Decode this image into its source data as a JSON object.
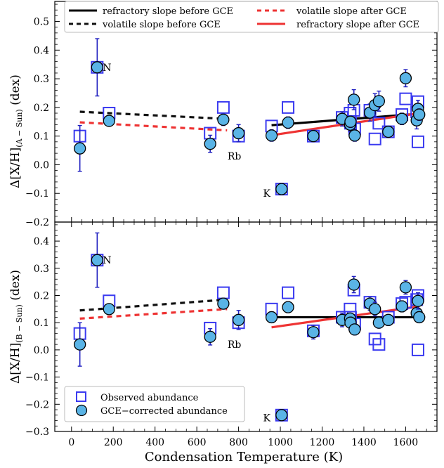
{
  "chart_data": {
    "type": "scatter",
    "xlabel": "Condensation Temperature (K)",
    "xlim": [
      -80,
      1750
    ],
    "x_ticks": [
      "0",
      "200",
      "400",
      "600",
      "800",
      "1000",
      "1200",
      "1400",
      "1600"
    ],
    "colors": {
      "observed": "#3a3af0",
      "corrected_fill": "#5ab4e6",
      "errorbar": "#4a4a4a",
      "errorbar_obs": "#2020c0",
      "refractory_before": "#000000",
      "volatile_before": "#111111",
      "volatile_after": "#ee3333",
      "refractory_after": "#ee3333"
    },
    "legend_top": {
      "placement": "top",
      "entries": [
        {
          "key": "refractory_before",
          "label": "refractory slope before GCE"
        },
        {
          "key": "volatile_after",
          "label": "volatile slope after GCE"
        },
        {
          "key": "volatile_before",
          "label": "volatile slope before GCE"
        },
        {
          "key": "refractory_after",
          "label": "refractory slope after GCE"
        }
      ]
    },
    "legend_bottom": {
      "placement": "lower-left",
      "entries": [
        {
          "key": "observed",
          "label": "Observed abundance"
        },
        {
          "key": "corrected",
          "label": "GCE−corrected abundance"
        }
      ]
    },
    "panels": [
      {
        "ylabel_pre": "Δ[X/H]",
        "ylabel_sub": "(A − Sun)",
        "ylabel_post": " (dex)",
        "ylim": [
          -0.2,
          0.57
        ],
        "y_ticks": [
          "−0.2",
          "−0.1",
          "0.0",
          "0.1",
          "0.2",
          "0.3",
          "0.4",
          "0.5"
        ],
        "y_tick_values": [
          -0.2,
          -0.1,
          0.0,
          0.1,
          0.2,
          0.3,
          0.4,
          0.5
        ],
        "annotations": [
          {
            "text": "N",
            "x": 170,
            "y": 0.34
          },
          {
            "text": "Rb",
            "x": 780,
            "y": 0.03
          },
          {
            "text": "K",
            "x": 935,
            "y": -0.1
          }
        ],
        "observed": [
          {
            "x": 40,
            "y": 0.1
          },
          {
            "x": 123,
            "y": 0.34
          },
          {
            "x": 180,
            "y": 0.18
          },
          {
            "x": 664,
            "y": 0.11
          },
          {
            "x": 727,
            "y": 0.2
          },
          {
            "x": 800,
            "y": 0.1
          },
          {
            "x": 958,
            "y": 0.135
          },
          {
            "x": 1006,
            "y": -0.085
          },
          {
            "x": 1037,
            "y": 0.2
          },
          {
            "x": 1158,
            "y": 0.1
          },
          {
            "x": 1296,
            "y": 0.165
          },
          {
            "x": 1334,
            "y": 0.18
          },
          {
            "x": 1336,
            "y": 0.145
          },
          {
            "x": 1352,
            "y": 0.19
          },
          {
            "x": 1356,
            "y": 0.125
          },
          {
            "x": 1429,
            "y": 0.19
          },
          {
            "x": 1453,
            "y": 0.09
          },
          {
            "x": 1472,
            "y": 0.145
          },
          {
            "x": 1517,
            "y": 0.115
          },
          {
            "x": 1582,
            "y": 0.175
          },
          {
            "x": 1600,
            "y": 0.23
          },
          {
            "x": 1653,
            "y": 0.185
          },
          {
            "x": 1659,
            "y": 0.22
          },
          {
            "x": 1659,
            "y": 0.08
          }
        ],
        "corrected": [
          {
            "x": 40,
            "y": 0.057,
            "err": 0.08
          },
          {
            "x": 123,
            "y": 0.34,
            "err": 0.1
          },
          {
            "x": 180,
            "y": 0.153,
            "err": 0.015
          },
          {
            "x": 664,
            "y": 0.073,
            "err": 0.03
          },
          {
            "x": 727,
            "y": 0.157,
            "err": 0.02
          },
          {
            "x": 800,
            "y": 0.11,
            "err": 0.03
          },
          {
            "x": 958,
            "y": 0.102,
            "err": 0.02
          },
          {
            "x": 1006,
            "y": -0.085,
            "err": 0.02
          },
          {
            "x": 1037,
            "y": 0.147,
            "err": 0.02
          },
          {
            "x": 1158,
            "y": 0.1,
            "err": 0.02
          },
          {
            "x": 1296,
            "y": 0.16,
            "err": 0.025
          },
          {
            "x": 1334,
            "y": 0.14,
            "err": 0.025
          },
          {
            "x": 1336,
            "y": 0.15,
            "err": 0.02
          },
          {
            "x": 1352,
            "y": 0.227,
            "err": 0.035
          },
          {
            "x": 1356,
            "y": 0.102,
            "err": 0.02
          },
          {
            "x": 1429,
            "y": 0.182,
            "err": 0.03
          },
          {
            "x": 1453,
            "y": 0.208,
            "err": 0.04
          },
          {
            "x": 1472,
            "y": 0.222,
            "err": 0.035
          },
          {
            "x": 1517,
            "y": 0.115,
            "err": 0.02
          },
          {
            "x": 1582,
            "y": 0.16,
            "err": 0.02
          },
          {
            "x": 1600,
            "y": 0.302,
            "err": 0.03
          },
          {
            "x": 1653,
            "y": 0.155,
            "err": 0.03
          },
          {
            "x": 1659,
            "y": 0.195,
            "err": 0.03
          },
          {
            "x": 1665,
            "y": 0.175,
            "err": 0.02
          }
        ],
        "lines": {
          "volatile_before": [
            [
              40,
              0.185
            ],
            [
              745,
              0.16
            ]
          ],
          "volatile_after": [
            [
              40,
              0.148
            ],
            [
              745,
              0.12
            ]
          ],
          "refractory_before": [
            [
              958,
              0.138
            ],
            [
              1665,
              0.178
            ]
          ],
          "refractory_after": [
            [
              958,
              0.103
            ],
            [
              1665,
              0.18
            ]
          ]
        }
      },
      {
        "ylabel_pre": "Δ[X/H]",
        "ylabel_sub": "(B − Sun)",
        "ylabel_post": " (dex)",
        "ylim": [
          -0.3,
          0.47
        ],
        "y_ticks": [
          "−0.3",
          "−0.2",
          "−0.1",
          "0.0",
          "0.1",
          "0.2",
          "0.3",
          "0.4"
        ],
        "y_tick_values": [
          -0.3,
          -0.2,
          -0.1,
          0.0,
          0.1,
          0.2,
          0.3,
          0.4
        ],
        "annotations": [
          {
            "text": "N",
            "x": 170,
            "y": 0.33
          },
          {
            "text": "Rb",
            "x": 780,
            "y": 0.02
          },
          {
            "text": "K",
            "x": 935,
            "y": -0.25
          }
        ],
        "observed": [
          {
            "x": 40,
            "y": 0.06
          },
          {
            "x": 123,
            "y": 0.33
          },
          {
            "x": 180,
            "y": 0.18
          },
          {
            "x": 664,
            "y": 0.08
          },
          {
            "x": 727,
            "y": 0.21
          },
          {
            "x": 800,
            "y": 0.1
          },
          {
            "x": 958,
            "y": 0.15
          },
          {
            "x": 1006,
            "y": -0.24
          },
          {
            "x": 1037,
            "y": 0.21
          },
          {
            "x": 1158,
            "y": 0.07
          },
          {
            "x": 1296,
            "y": 0.12
          },
          {
            "x": 1334,
            "y": 0.15
          },
          {
            "x": 1336,
            "y": 0.12
          },
          {
            "x": 1352,
            "y": 0.22
          },
          {
            "x": 1356,
            "y": 0.095
          },
          {
            "x": 1429,
            "y": 0.175
          },
          {
            "x": 1453,
            "y": 0.04
          },
          {
            "x": 1472,
            "y": 0.02
          },
          {
            "x": 1517,
            "y": 0.12
          },
          {
            "x": 1582,
            "y": 0.17
          },
          {
            "x": 1600,
            "y": 0.175
          },
          {
            "x": 1653,
            "y": 0.185
          },
          {
            "x": 1659,
            "y": 0.2
          },
          {
            "x": 1659,
            "y": 0.0
          }
        ],
        "corrected": [
          {
            "x": 40,
            "y": 0.02,
            "err": 0.08
          },
          {
            "x": 123,
            "y": 0.33,
            "err": 0.1
          },
          {
            "x": 180,
            "y": 0.15,
            "err": 0.015
          },
          {
            "x": 664,
            "y": 0.048,
            "err": 0.03
          },
          {
            "x": 727,
            "y": 0.17,
            "err": 0.02
          },
          {
            "x": 800,
            "y": 0.11,
            "err": 0.035
          },
          {
            "x": 958,
            "y": 0.12,
            "err": 0.02
          },
          {
            "x": 1006,
            "y": -0.24,
            "err": 0.02
          },
          {
            "x": 1037,
            "y": 0.157,
            "err": 0.02
          },
          {
            "x": 1158,
            "y": 0.065,
            "err": 0.025
          },
          {
            "x": 1296,
            "y": 0.11,
            "err": 0.025
          },
          {
            "x": 1334,
            "y": 0.115,
            "err": 0.02
          },
          {
            "x": 1336,
            "y": 0.1,
            "err": 0.02
          },
          {
            "x": 1352,
            "y": 0.24,
            "err": 0.03
          },
          {
            "x": 1356,
            "y": 0.075,
            "err": 0.02
          },
          {
            "x": 1429,
            "y": 0.17,
            "err": 0.025
          },
          {
            "x": 1453,
            "y": 0.15,
            "err": 0.025
          },
          {
            "x": 1472,
            "y": 0.1,
            "err": 0.02
          },
          {
            "x": 1517,
            "y": 0.11,
            "err": 0.02
          },
          {
            "x": 1582,
            "y": 0.16,
            "err": 0.02
          },
          {
            "x": 1600,
            "y": 0.23,
            "err": 0.025
          },
          {
            "x": 1653,
            "y": 0.135,
            "err": 0.02
          },
          {
            "x": 1659,
            "y": 0.18,
            "err": 0.03
          },
          {
            "x": 1665,
            "y": 0.12,
            "err": 0.02
          }
        ],
        "lines": {
          "volatile_before": [
            [
              40,
              0.145
            ],
            [
              745,
              0.185
            ]
          ],
          "volatile_after": [
            [
              40,
              0.115
            ],
            [
              745,
              0.15
            ]
          ],
          "refractory_before": [
            [
              958,
              0.12
            ],
            [
              1665,
              0.12
            ]
          ],
          "refractory_after": [
            [
              958,
              0.083
            ],
            [
              1665,
              0.16
            ]
          ]
        }
      }
    ]
  }
}
